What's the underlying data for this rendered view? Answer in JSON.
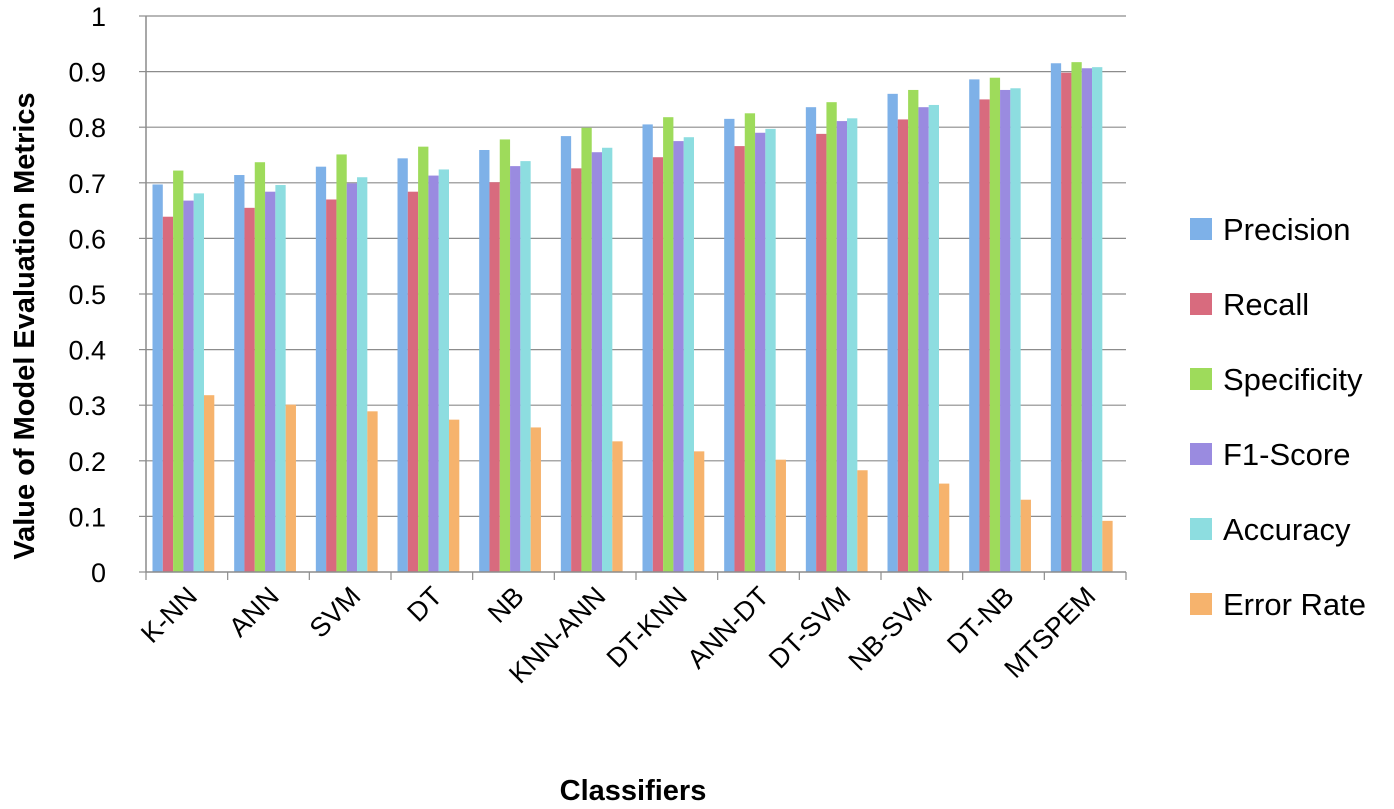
{
  "chart_data": {
    "type": "bar",
    "xlabel": "Classifiers",
    "ylabel": "Value of Model Evaluation Metrics",
    "ylim": [
      0,
      1
    ],
    "yticks": [
      "0",
      "0.1",
      "0.2",
      "0.3",
      "0.4",
      "0.5",
      "0.6",
      "0.7",
      "0.8",
      "0.9",
      "1"
    ],
    "grid": true,
    "legend_position": "right",
    "categories": [
      "K-NN",
      "ANN",
      "SVM",
      "DT",
      "NB",
      "KNN-ANN",
      "DT-KNN",
      "ANN-DT",
      "DT-SVM",
      "NB-SVM",
      "DT-NB",
      "MTSPEM"
    ],
    "series": [
      {
        "name": "Precision",
        "color": "#7EB1E8",
        "values": [
          0.697,
          0.714,
          0.729,
          0.744,
          0.759,
          0.784,
          0.805,
          0.815,
          0.836,
          0.86,
          0.886,
          0.915
        ]
      },
      {
        "name": "Recall",
        "color": "#D86B7E",
        "values": [
          0.639,
          0.655,
          0.67,
          0.684,
          0.701,
          0.726,
          0.746,
          0.766,
          0.788,
          0.814,
          0.85,
          0.898
        ]
      },
      {
        "name": "Specificity",
        "color": "#9EDB5B",
        "values": [
          0.722,
          0.737,
          0.751,
          0.765,
          0.778,
          0.799,
          0.818,
          0.825,
          0.845,
          0.867,
          0.889,
          0.917
        ]
      },
      {
        "name": "F1-Score",
        "color": "#9A8BE0",
        "values": [
          0.668,
          0.684,
          0.699,
          0.713,
          0.73,
          0.755,
          0.775,
          0.79,
          0.811,
          0.836,
          0.867,
          0.906
        ]
      },
      {
        "name": "Accuracy",
        "color": "#8DDDE0",
        "values": [
          0.681,
          0.696,
          0.71,
          0.724,
          0.739,
          0.763,
          0.782,
          0.797,
          0.816,
          0.84,
          0.87,
          0.908
        ]
      },
      {
        "name": "Error Rate",
        "color": "#F6B36D",
        "values": [
          0.318,
          0.301,
          0.289,
          0.274,
          0.26,
          0.235,
          0.217,
          0.202,
          0.183,
          0.159,
          0.13,
          0.092
        ]
      }
    ]
  }
}
